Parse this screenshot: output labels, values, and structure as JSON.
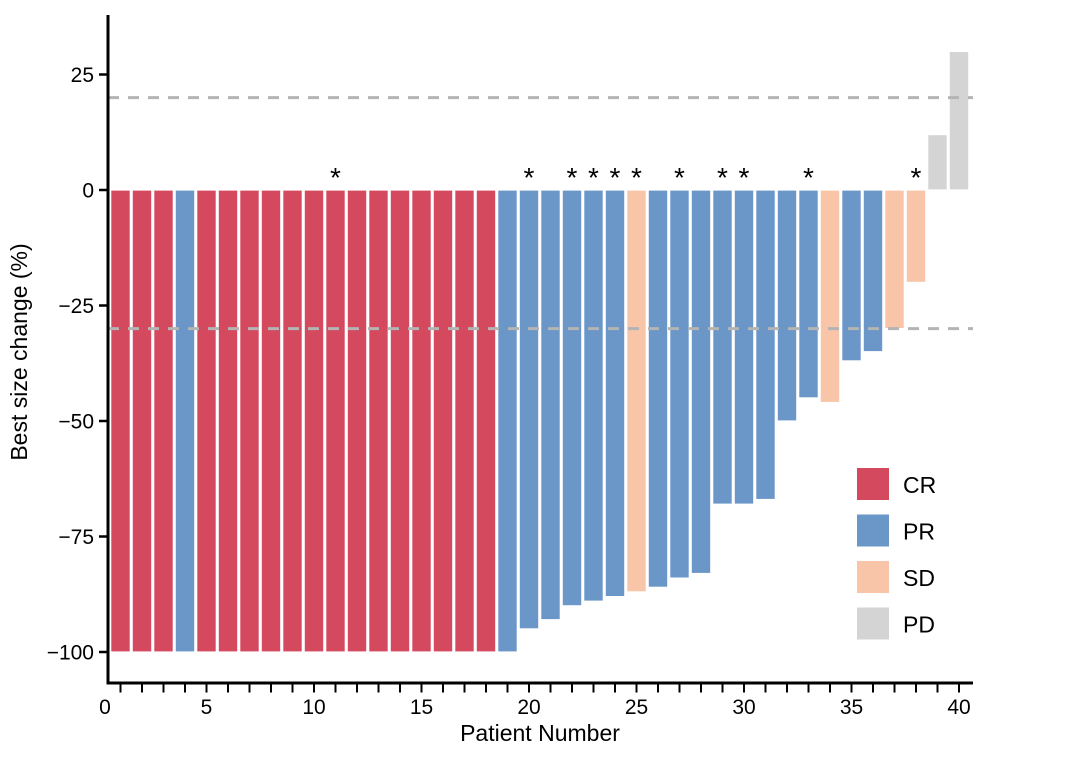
{
  "chart_data": {
    "type": "bar",
    "variant": "waterfall",
    "title": "",
    "xlabel": "Patient Number",
    "ylabel": "Best size change (%)",
    "xlim": [
      0.4,
      40.6
    ],
    "ylim": [
      -107,
      38
    ],
    "grid": "off",
    "legend_position": "right-middle",
    "annotation_glyph": "*",
    "colors": {
      "CR": "#d5495f",
      "PR": "#6a97c8",
      "SD": "#f8c5a8",
      "PD": "#d4d4d4",
      "reference_line": "#b4b4b4",
      "axis": "#000000",
      "bar_border": "#ffffff"
    },
    "reference_lines": [
      {
        "y": 20,
        "style": "dashed"
      },
      {
        "y": -30,
        "style": "dashed"
      }
    ],
    "yticks": [
      {
        "value": 25,
        "label": "25"
      },
      {
        "value": 0,
        "label": "0"
      },
      {
        "value": -25,
        "label": "−25"
      },
      {
        "value": -50,
        "label": "−50"
      },
      {
        "value": -75,
        "label": "−75"
      },
      {
        "value": -100,
        "label": "−100"
      }
    ],
    "xticks": [
      {
        "value": 0,
        "label": "0"
      },
      {
        "value": 5,
        "label": "5"
      },
      {
        "value": 10,
        "label": "10"
      },
      {
        "value": 15,
        "label": "15"
      },
      {
        "value": 20,
        "label": "20"
      },
      {
        "value": 25,
        "label": "25"
      },
      {
        "value": 30,
        "label": "30"
      },
      {
        "value": 35,
        "label": "35"
      },
      {
        "value": 40,
        "label": "40"
      }
    ],
    "legend": {
      "entries": [
        {
          "key": "CR",
          "label": "CR"
        },
        {
          "key": "PR",
          "label": "PR"
        },
        {
          "key": "SD",
          "label": "SD"
        },
        {
          "key": "PD",
          "label": "PD"
        }
      ]
    },
    "patients": [
      {
        "n": 1,
        "value": -100,
        "response": "CR",
        "star": false
      },
      {
        "n": 2,
        "value": -100,
        "response": "CR",
        "star": false
      },
      {
        "n": 3,
        "value": -100,
        "response": "CR",
        "star": false
      },
      {
        "n": 4,
        "value": -100,
        "response": "PR",
        "star": false
      },
      {
        "n": 5,
        "value": -100,
        "response": "CR",
        "star": false
      },
      {
        "n": 6,
        "value": -100,
        "response": "CR",
        "star": false
      },
      {
        "n": 7,
        "value": -100,
        "response": "CR",
        "star": false
      },
      {
        "n": 8,
        "value": -100,
        "response": "CR",
        "star": false
      },
      {
        "n": 9,
        "value": -100,
        "response": "CR",
        "star": false
      },
      {
        "n": 10,
        "value": -100,
        "response": "CR",
        "star": false
      },
      {
        "n": 11,
        "value": -100,
        "response": "CR",
        "star": true
      },
      {
        "n": 12,
        "value": -100,
        "response": "CR",
        "star": false
      },
      {
        "n": 13,
        "value": -100,
        "response": "CR",
        "star": false
      },
      {
        "n": 14,
        "value": -100,
        "response": "CR",
        "star": false
      },
      {
        "n": 15,
        "value": -100,
        "response": "CR",
        "star": false
      },
      {
        "n": 16,
        "value": -100,
        "response": "CR",
        "star": false
      },
      {
        "n": 17,
        "value": -100,
        "response": "CR",
        "star": false
      },
      {
        "n": 18,
        "value": -100,
        "response": "CR",
        "star": false
      },
      {
        "n": 19,
        "value": -100,
        "response": "PR",
        "star": false
      },
      {
        "n": 20,
        "value": -95,
        "response": "PR",
        "star": true
      },
      {
        "n": 21,
        "value": -93,
        "response": "PR",
        "star": false
      },
      {
        "n": 22,
        "value": -90,
        "response": "PR",
        "star": true
      },
      {
        "n": 23,
        "value": -89,
        "response": "PR",
        "star": true
      },
      {
        "n": 24,
        "value": -88,
        "response": "PR",
        "star": true
      },
      {
        "n": 25,
        "value": -87,
        "response": "SD",
        "star": true
      },
      {
        "n": 26,
        "value": -86,
        "response": "PR",
        "star": false
      },
      {
        "n": 27,
        "value": -84,
        "response": "PR",
        "star": true
      },
      {
        "n": 28,
        "value": -83,
        "response": "PR",
        "star": false
      },
      {
        "n": 29,
        "value": -68,
        "response": "PR",
        "star": true
      },
      {
        "n": 30,
        "value": -68,
        "response": "PR",
        "star": true
      },
      {
        "n": 31,
        "value": -67,
        "response": "PR",
        "star": false
      },
      {
        "n": 32,
        "value": -50,
        "response": "PR",
        "star": false
      },
      {
        "n": 33,
        "value": -45,
        "response": "PR",
        "star": true
      },
      {
        "n": 34,
        "value": -46,
        "response": "SD",
        "star": false
      },
      {
        "n": 35,
        "value": -37,
        "response": "PR",
        "star": false
      },
      {
        "n": 36,
        "value": -35,
        "response": "PR",
        "star": false
      },
      {
        "n": 37,
        "value": -30,
        "response": "SD",
        "star": false
      },
      {
        "n": 38,
        "value": -20,
        "response": "SD",
        "star": true
      },
      {
        "n": 39,
        "value": 12,
        "response": "PD",
        "star": false
      },
      {
        "n": 40,
        "value": 30,
        "response": "PD",
        "star": false
      }
    ]
  }
}
